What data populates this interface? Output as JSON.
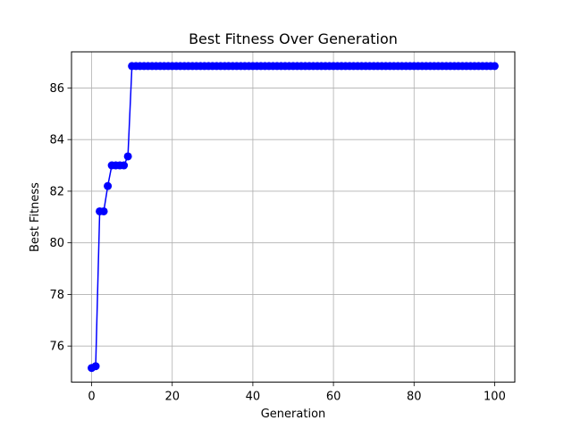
{
  "chart_data": {
    "type": "line",
    "title": "Best Fitness Over Generation",
    "xlabel": "Generation",
    "ylabel": "Best Fitness",
    "xlim": [
      -5,
      105
    ],
    "ylim": [
      74.6,
      87.4
    ],
    "xticks": [
      0,
      20,
      40,
      60,
      80,
      100
    ],
    "yticks": [
      76,
      78,
      80,
      82,
      84,
      86
    ],
    "grid": true,
    "series": [
      {
        "color": "#0000ff",
        "marker": "circle",
        "x": [
          0,
          1,
          2,
          3,
          4,
          5,
          6,
          7,
          8,
          9,
          10,
          11,
          12,
          13,
          14,
          15,
          16,
          17,
          18,
          19,
          20,
          21,
          22,
          23,
          24,
          25,
          26,
          27,
          28,
          29,
          30,
          31,
          32,
          33,
          34,
          35,
          36,
          37,
          38,
          39,
          40,
          41,
          42,
          43,
          44,
          45,
          46,
          47,
          48,
          49,
          50,
          51,
          52,
          53,
          54,
          55,
          56,
          57,
          58,
          59,
          60,
          61,
          62,
          63,
          64,
          65,
          66,
          67,
          68,
          69,
          70,
          71,
          72,
          73,
          74,
          75,
          76,
          77,
          78,
          79,
          80,
          81,
          82,
          83,
          84,
          85,
          86,
          87,
          88,
          89,
          90,
          91,
          92,
          93,
          94,
          95,
          96,
          97,
          98,
          99,
          100
        ],
        "y": [
          75.15,
          75.22,
          81.22,
          81.22,
          82.2,
          83.0,
          83.0,
          83.0,
          83.0,
          83.35,
          86.85,
          86.85,
          86.85,
          86.85,
          86.85,
          86.85,
          86.85,
          86.85,
          86.85,
          86.85,
          86.85,
          86.85,
          86.85,
          86.85,
          86.85,
          86.85,
          86.85,
          86.85,
          86.85,
          86.85,
          86.85,
          86.85,
          86.85,
          86.85,
          86.85,
          86.85,
          86.85,
          86.85,
          86.85,
          86.85,
          86.85,
          86.85,
          86.85,
          86.85,
          86.85,
          86.85,
          86.85,
          86.85,
          86.85,
          86.85,
          86.85,
          86.85,
          86.85,
          86.85,
          86.85,
          86.85,
          86.85,
          86.85,
          86.85,
          86.85,
          86.85,
          86.85,
          86.85,
          86.85,
          86.85,
          86.85,
          86.85,
          86.85,
          86.85,
          86.85,
          86.85,
          86.85,
          86.85,
          86.85,
          86.85,
          86.85,
          86.85,
          86.85,
          86.85,
          86.85,
          86.85,
          86.85,
          86.85,
          86.85,
          86.85,
          86.85,
          86.85,
          86.85,
          86.85,
          86.85,
          86.85,
          86.85,
          86.85,
          86.85,
          86.85,
          86.85,
          86.85,
          86.85,
          86.85,
          86.85,
          86.85
        ]
      }
    ]
  }
}
